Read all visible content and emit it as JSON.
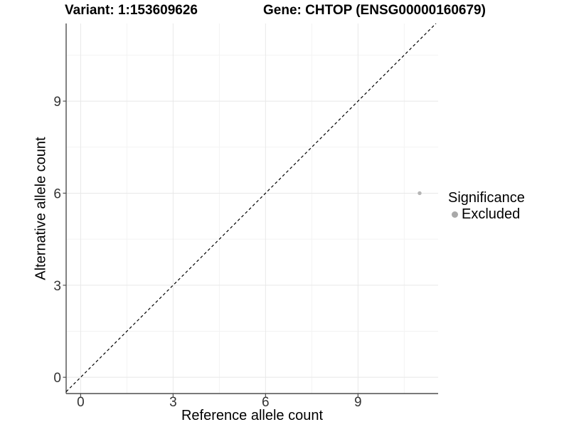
{
  "chart_data": {
    "type": "scatter",
    "title_left": "Variant: 1:153609626",
    "title_right": "Gene: CHTOP (ENSG00000160679)",
    "xlabel": "Reference allele count",
    "ylabel": "Alternative allele count",
    "xlim": [
      -0.47,
      11.6
    ],
    "ylim": [
      -0.53,
      11.53
    ],
    "x_ticks": [
      0,
      3,
      6,
      9
    ],
    "y_ticks": [
      0,
      3,
      6,
      9
    ],
    "x_minor_ticks": [
      1.5,
      4.5,
      7.5,
      10.5
    ],
    "y_minor_ticks": [
      1.5,
      4.5,
      7.5,
      10.5
    ],
    "grid": "major+minor",
    "series": [
      {
        "name": "Excluded",
        "marker": "circle",
        "color": "#b5b5b5",
        "points": [
          {
            "x": 11,
            "y": 6
          }
        ]
      }
    ],
    "reference_line": {
      "kind": "identity y=x",
      "style": "dashed",
      "color": "#000000"
    },
    "legend": {
      "title": "Significance",
      "position": "right",
      "entries": [
        {
          "label": "Excluded",
          "color": "#a9a9a9",
          "marker": "circle"
        }
      ]
    },
    "colors": {
      "background": "#ffffff",
      "grid_major": "#e8e8e8",
      "grid_minor": "#f3f3f3",
      "axis_line": "#4e4e4e",
      "tick_mark": "#4e4e4e",
      "tick_label": "#333333"
    }
  }
}
